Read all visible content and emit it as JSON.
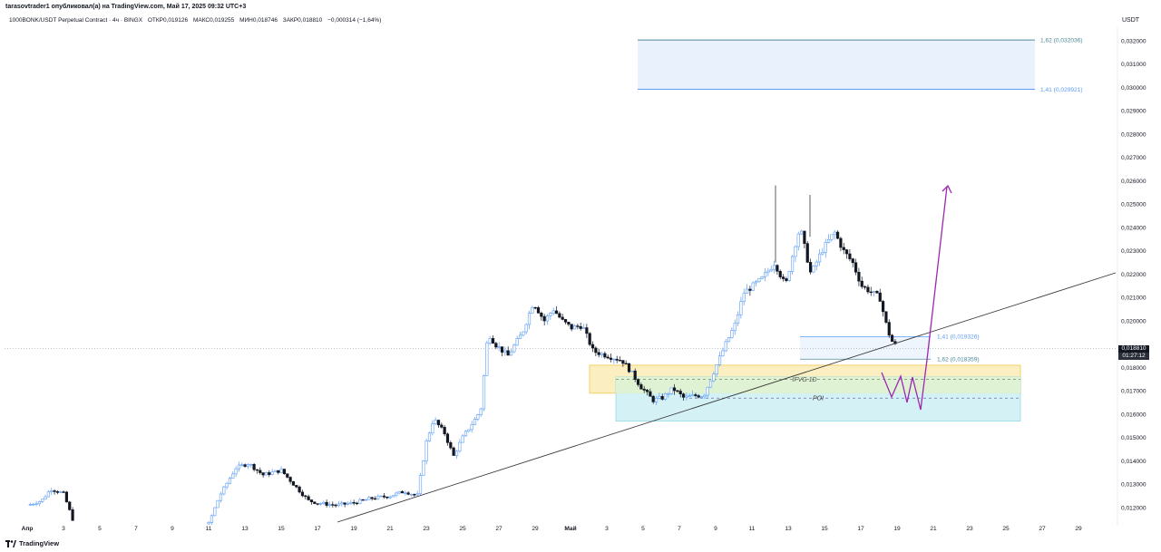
{
  "header": {
    "published_by": "tarasovtrader1 опубликовал(а) на TradingView.com, Май 17, 2025 09:32 UTC+3",
    "symbol": "1000BONK/USDT Perpetual Contract · 4ч · BINGX",
    "ohlc": [
      {
        "label": "ОТКР",
        "value": "0,019126"
      },
      {
        "label": "МАКС",
        "value": "0,019255"
      },
      {
        "label": "МИН",
        "value": "0,018746"
      },
      {
        "label": "ЗАКР",
        "value": "0,018810"
      }
    ],
    "change": "−0,000314 (−1,64%)",
    "currency": "USDT"
  },
  "price_axis": {
    "ticks": [
      "0,012000",
      "0,013000",
      "0,014000",
      "0,015000",
      "0,016000",
      "0,017000",
      "0,018000",
      "0,019000",
      "0,020000",
      "0,021000",
      "0,022000",
      "0,023000",
      "0,024000",
      "0,025000",
      "0,026000",
      "0,027000",
      "0,028000",
      "0,029000",
      "0,030000",
      "0,031000",
      "0,032000"
    ],
    "current_price": "0,018810",
    "countdown": "01:27:12"
  },
  "time_axis": {
    "ticks": [
      "Апр",
      "3",
      "5",
      "7",
      "9",
      "11",
      "13",
      "15",
      "17",
      "19",
      "21",
      "23",
      "25",
      "27",
      "29",
      "Май",
      "3",
      "5",
      "7",
      "9",
      "11",
      "13",
      "15",
      "17",
      "19",
      "21",
      "23",
      "25",
      "27",
      "29"
    ]
  },
  "annotations": {
    "fib_top_1": "1,62 (0,032036)",
    "fib_top_2": "1,41 (0,029921)",
    "fib_low_1": "1,41 (0,019326)",
    "fib_low_2": "1,62 (0,018359)",
    "zone_ifvg": "IFVG 1D",
    "zone_poi": "POI"
  },
  "colors": {
    "up_candle": "#5b9cf6",
    "down_candle": "#131722",
    "trendline": "#3b3b3b",
    "projection": "#9c27b0",
    "fib_box": "#e8f1fc",
    "fib_line": "#4c8b9c",
    "ifvg_zone": "#fbefc2",
    "poi_zone": "#cdeff3",
    "overlap_zone": "#dff2d3"
  },
  "footer": {
    "brand": "TradingView"
  },
  "chart_data": {
    "type": "candlestick",
    "ylim": [
      0.0115,
      0.0325
    ],
    "key_prices": [
      {
        "x": "Апр 2",
        "close": 0.0125
      },
      {
        "x": "Апр 12",
        "close": 0.0138
      },
      {
        "x": "Апр 17",
        "close": 0.012
      },
      {
        "x": "Апр 22",
        "close": 0.016
      },
      {
        "x": "Апр 26",
        "close": 0.0195
      },
      {
        "x": "Апр 28",
        "close": 0.021
      },
      {
        "x": "Май 3",
        "close": 0.0185
      },
      {
        "x": "Май 5",
        "close": 0.0165
      },
      {
        "x": "Май 8",
        "close": 0.0185
      },
      {
        "x": "Май 10",
        "close": 0.0225
      },
      {
        "x": "Май 12",
        "close": 0.024
      },
      {
        "x": "Май 14",
        "close": 0.0245
      },
      {
        "x": "Май 17",
        "close": 0.01881
      }
    ],
    "current_price": 0.01881,
    "zones": [
      {
        "name": "IFVG 1D",
        "from": 0.0169,
        "to": 0.0181
      },
      {
        "name": "POI",
        "from": 0.0157,
        "to": 0.0176
      }
    ],
    "fib_levels": [
      {
        "ratio": "1,62",
        "price": 0.032036
      },
      {
        "ratio": "1,41",
        "price": 0.029921
      },
      {
        "ratio": "1,41",
        "price": 0.019326
      },
      {
        "ratio": "1,62",
        "price": 0.018359
      }
    ]
  }
}
